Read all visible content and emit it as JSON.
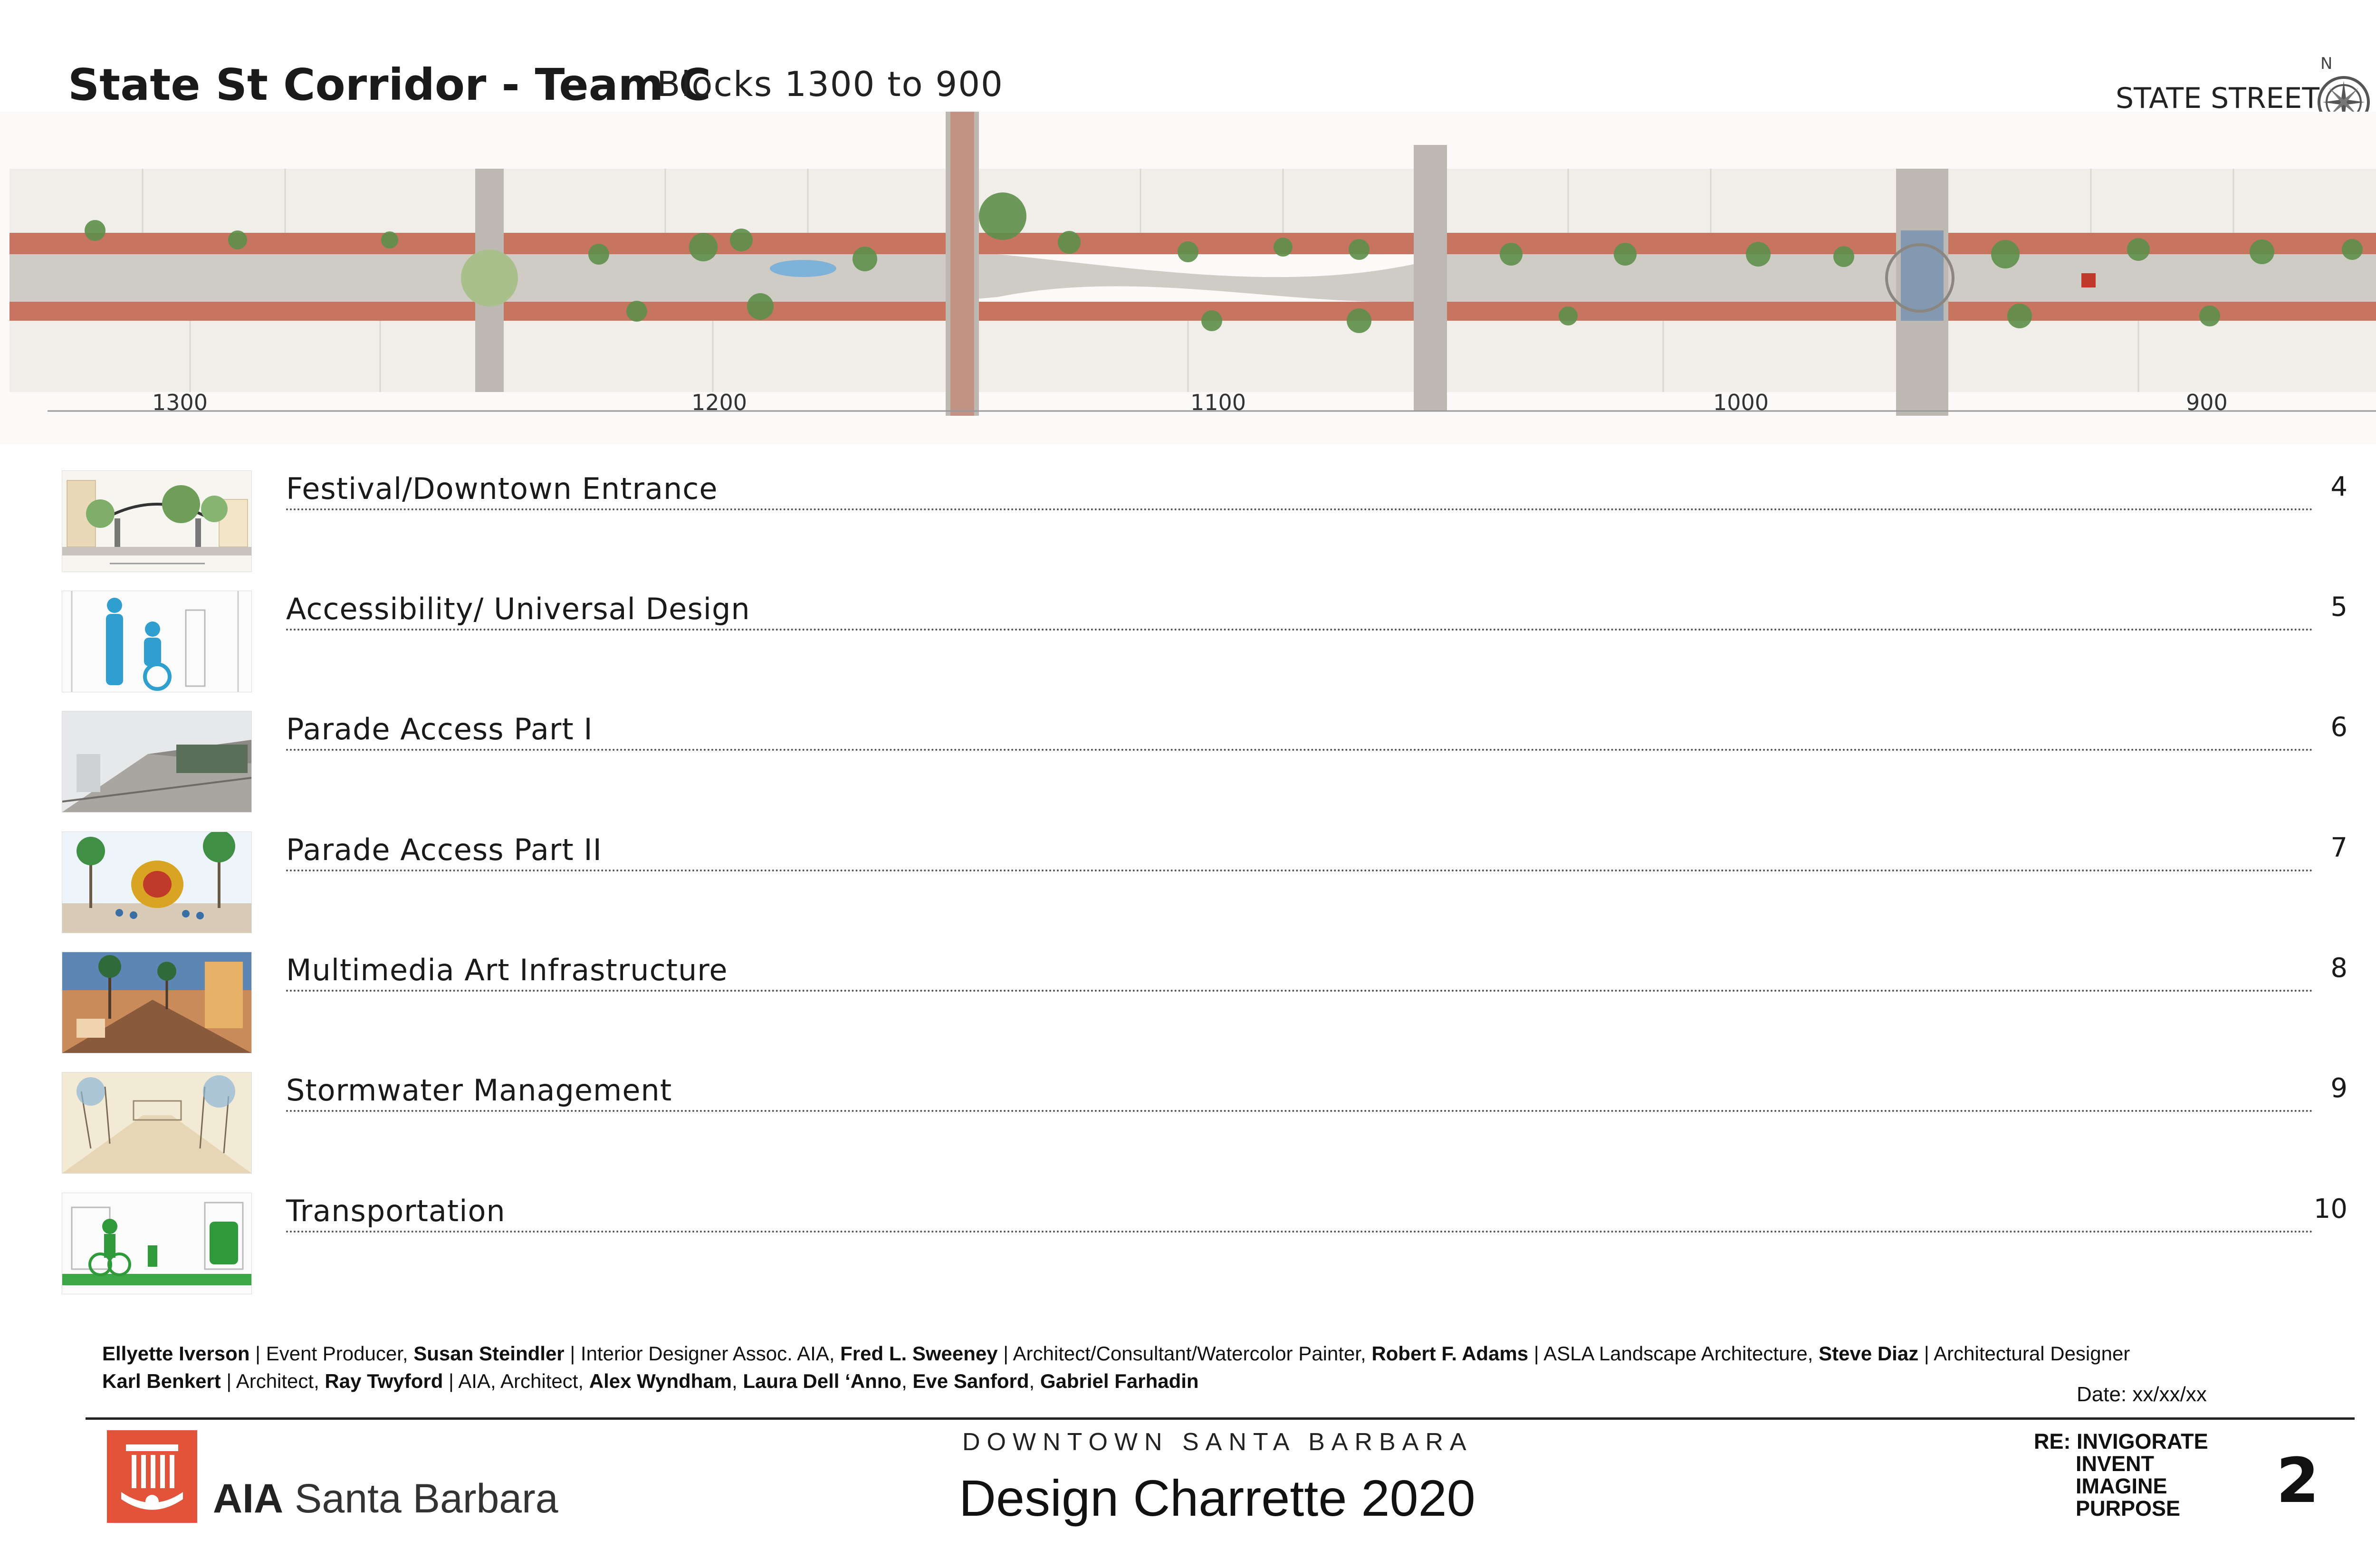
{
  "header": {
    "title": "State St Corridor - Team C",
    "subtitle": "Blocks 1300 to 900",
    "street_label": "STATE STREET",
    "compass_letter": "N"
  },
  "plan": {
    "block_numbers": [
      "1300",
      "1200",
      "1100",
      "1000",
      "900"
    ]
  },
  "contents": [
    {
      "label": "Festival/Downtown Entrance",
      "page": "4",
      "thumb": "gateway-sketch"
    },
    {
      "label": "Accessibility/ Universal Design",
      "page": "5",
      "thumb": "accessibility-figures"
    },
    {
      "label": "Parade Access Part I",
      "page": "6",
      "thumb": "parade-street-render"
    },
    {
      "label": "Parade Access Part II",
      "page": "7",
      "thumb": "parade-palms-sketch"
    },
    {
      "label": "Multimedia Art Infrastructure",
      "page": "8",
      "thumb": "multimedia-render"
    },
    {
      "label": "Stormwater Management",
      "page": "9",
      "thumb": "stormwater-sketch"
    },
    {
      "label": "Transportation",
      "page": "10",
      "thumb": "transportation-sketch"
    }
  ],
  "credits": {
    "line1": [
      {
        "name": "Ellyette Iverson",
        "role": " | Event Producer, "
      },
      {
        "name": "Susan Steindler",
        "role": " | Interior Designer Assoc. AIA, "
      },
      {
        "name": "Fred L. Sweeney",
        "role": " | Architect/Consultant/Watercolor Painter, "
      },
      {
        "name": "Robert F. Adams",
        "role": " | ASLA Landscape Architecture, "
      },
      {
        "name": "Steve Diaz",
        "role": " | Architectural Designer"
      }
    ],
    "line2": [
      {
        "name": "Karl Benkert",
        "role": " | Architect, "
      },
      {
        "name": "Ray Twyford",
        "role": " | AIA, Architect, "
      },
      {
        "name": "Alex Wyndham",
        "role": ", "
      },
      {
        "name": "Laura Dell ‘Anno",
        "role": ", "
      },
      {
        "name": "Eve Sanford",
        "role": ", "
      },
      {
        "name": "Gabriel Farhadin",
        "role": ""
      }
    ],
    "date": "Date: xx/xx/xx"
  },
  "footer": {
    "org_bold": "AIA",
    "org_name": "Santa Barbara",
    "event_location": "DOWNTOWN SANTA BARBARA",
    "event_title": "Design Charrette 2020",
    "tagline": [
      "RE: INVIGORATE",
      "INVENT",
      "IMAGINE",
      "PURPOSE"
    ],
    "page_number": "2"
  },
  "colors": {
    "aia_red": "#e2533a",
    "pavement": "#c9c4bd",
    "brick": "#c77560",
    "tree": "#5d8f4a"
  }
}
